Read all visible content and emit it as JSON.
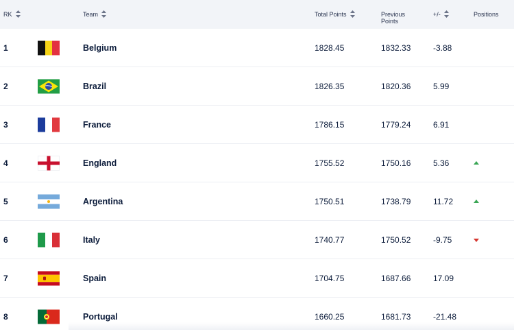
{
  "header": {
    "rank": "RK",
    "team": "Team",
    "total_points": "Total Points",
    "previous_points": "Previous Points",
    "change": "+/-",
    "positions": "Positions"
  },
  "rows": [
    {
      "rank": "1",
      "team": "Belgium",
      "total": "1828.45",
      "previous": "1832.33",
      "diff": "-3.88",
      "flag_icon": "belgium-flag-icon",
      "movement": "none"
    },
    {
      "rank": "2",
      "team": "Brazil",
      "total": "1826.35",
      "previous": "1820.36",
      "diff": "5.99",
      "flag_icon": "brazil-flag-icon",
      "movement": "none"
    },
    {
      "rank": "3",
      "team": "France",
      "total": "1786.15",
      "previous": "1779.24",
      "diff": "6.91",
      "flag_icon": "france-flag-icon",
      "movement": "none"
    },
    {
      "rank": "4",
      "team": "England",
      "total": "1755.52",
      "previous": "1750.16",
      "diff": "5.36",
      "flag_icon": "england-flag-icon",
      "movement": "up"
    },
    {
      "rank": "5",
      "team": "Argentina",
      "total": "1750.51",
      "previous": "1738.79",
      "diff": "11.72",
      "flag_icon": "argentina-flag-icon",
      "movement": "up"
    },
    {
      "rank": "6",
      "team": "Italy",
      "total": "1740.77",
      "previous": "1750.52",
      "diff": "-9.75",
      "flag_icon": "italy-flag-icon",
      "movement": "down"
    },
    {
      "rank": "7",
      "team": "Spain",
      "total": "1704.75",
      "previous": "1687.66",
      "diff": "17.09",
      "flag_icon": "spain-flag-icon",
      "movement": "none"
    },
    {
      "rank": "8",
      "team": "Portugal",
      "total": "1660.25",
      "previous": "1681.73",
      "diff": "-21.48",
      "flag_icon": "portugal-flag-icon",
      "movement": "none"
    }
  ],
  "colors": {
    "up": "#3aa655",
    "down": "#d6362f"
  }
}
